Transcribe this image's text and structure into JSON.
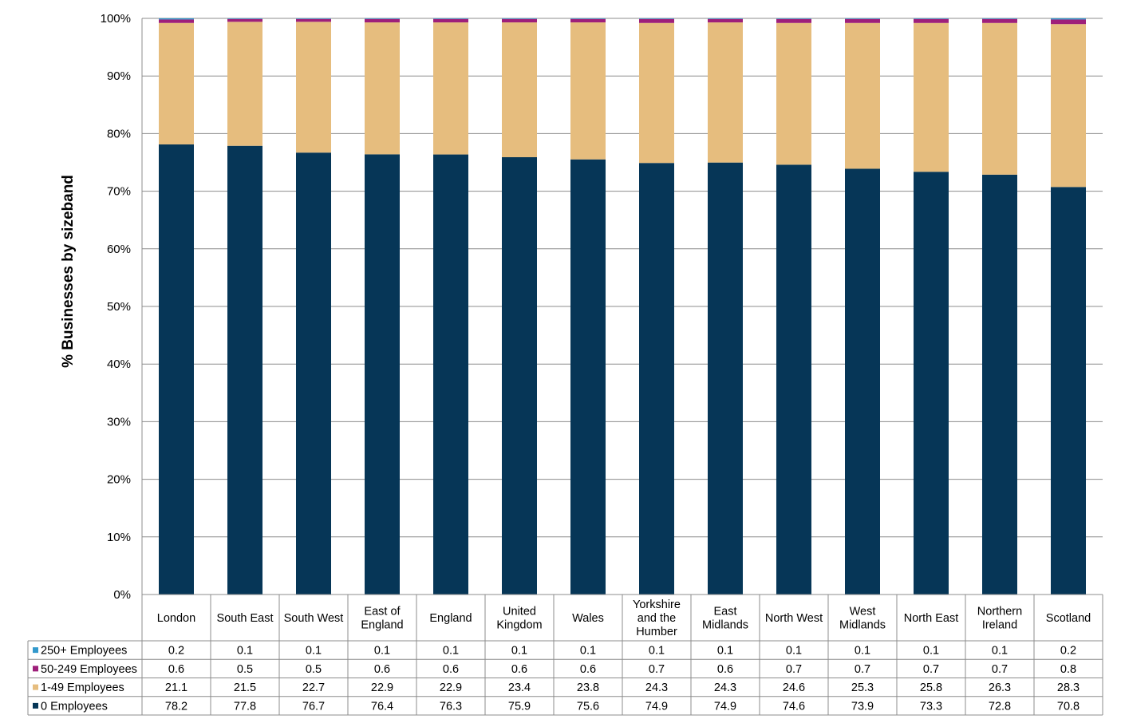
{
  "chart_data": {
    "type": "bar",
    "stacked": true,
    "percent": true,
    "title": "",
    "xlabel": "",
    "ylabel": "% Businesses by sizeband",
    "ylim": [
      0,
      100
    ],
    "yticks": [
      "0%",
      "10%",
      "20%",
      "30%",
      "40%",
      "50%",
      "60%",
      "70%",
      "80%",
      "90%",
      "100%"
    ],
    "grid": true,
    "legend": "data-table-left",
    "categories": [
      [
        "London"
      ],
      [
        "South East"
      ],
      [
        "South West"
      ],
      [
        "East of",
        "England"
      ],
      [
        "England"
      ],
      [
        "United",
        "Kingdom"
      ],
      [
        "Wales"
      ],
      [
        "Yorkshire",
        "and the",
        "Humber"
      ],
      [
        "East",
        "Midlands"
      ],
      [
        "North West"
      ],
      [
        "West",
        "Midlands"
      ],
      [
        "North East"
      ],
      [
        "Northern",
        "Ireland"
      ],
      [
        "Scotland"
      ]
    ],
    "series": [
      {
        "name": "250+ Employees",
        "color": "#3399cc",
        "values": [
          0.2,
          0.1,
          0.1,
          0.1,
          0.1,
          0.1,
          0.1,
          0.1,
          0.1,
          0.1,
          0.1,
          0.1,
          0.1,
          0.2
        ]
      },
      {
        "name": "50-249 Employees",
        "color": "#9e1f7a",
        "values": [
          0.6,
          0.5,
          0.5,
          0.6,
          0.6,
          0.6,
          0.6,
          0.7,
          0.6,
          0.7,
          0.7,
          0.7,
          0.7,
          0.8
        ]
      },
      {
        "name": "1-49 Employees",
        "color": "#e6bd7e",
        "values": [
          21.1,
          21.5,
          22.7,
          22.9,
          22.9,
          23.4,
          23.8,
          24.3,
          24.3,
          24.6,
          25.3,
          25.8,
          26.3,
          28.3
        ]
      },
      {
        "name": "0 Employees",
        "color": "#063657",
        "values": [
          78.2,
          77.8,
          76.7,
          76.4,
          76.3,
          75.9,
          75.6,
          74.9,
          74.9,
          74.6,
          73.9,
          73.3,
          72.8,
          70.8
        ]
      }
    ]
  }
}
